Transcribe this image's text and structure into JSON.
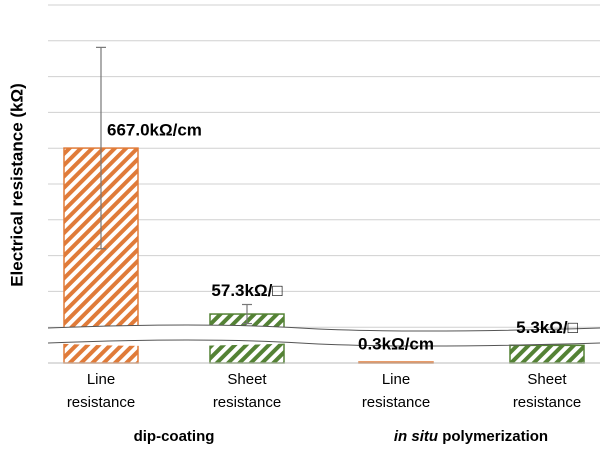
{
  "chart_data": {
    "type": "bar",
    "y_label": "Electrical resistance (kΩ)",
    "categories": [
      "Line resistance",
      "Sheet resistance",
      "Line resistance",
      "Sheet resistance"
    ],
    "groups": [
      [
        "dip-coating"
      ],
      [
        "in situ",
        " polymerization"
      ]
    ],
    "group_italic": [
      [
        false
      ],
      [
        true,
        false
      ]
    ],
    "values": [
      667.0,
      57.3,
      0.3,
      5.3
    ],
    "value_labels": [
      "667.0kΩ/cm",
      "57.3kΩ/□",
      "0.3kΩ/cm",
      "5.3kΩ/□"
    ],
    "errors": [
      370,
      35,
      null,
      null
    ],
    "colors": [
      "#e07b39",
      "#548235",
      "#e07b39",
      "#548235"
    ],
    "ylim": [
      0,
      1200
    ],
    "ybreak": 6,
    "grid": true
  }
}
